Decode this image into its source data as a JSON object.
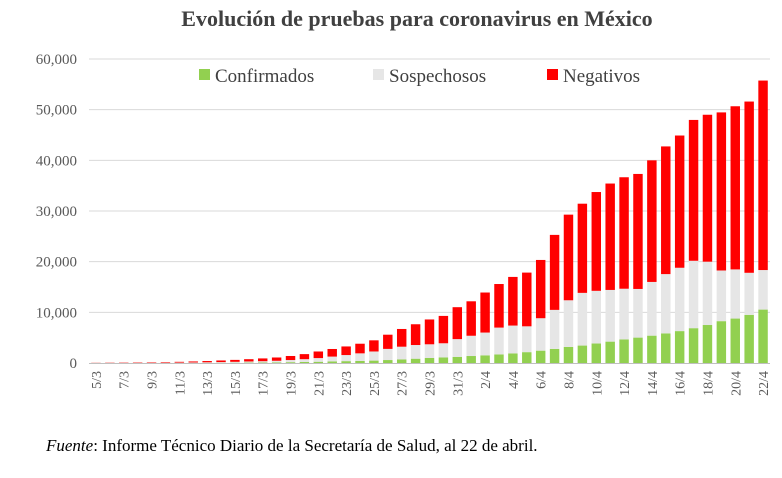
{
  "chart_data": {
    "type": "bar",
    "stacked": true,
    "title": "Evolución de pruebas para coronavirus en México",
    "xlabel": "",
    "ylabel": "",
    "ylim": [
      0,
      60000
    ],
    "yticks": [
      0,
      10000,
      20000,
      30000,
      40000,
      50000,
      60000
    ],
    "ytick_labels": [
      "0",
      "10,000",
      "20,000",
      "30,000",
      "40,000",
      "50,000",
      "60,000"
    ],
    "grid": true,
    "legend_position": "top",
    "categories": [
      "5/3",
      "6/3",
      "7/3",
      "8/3",
      "9/3",
      "10/3",
      "11/3",
      "12/3",
      "13/3",
      "14/3",
      "15/3",
      "16/3",
      "17/3",
      "18/3",
      "19/3",
      "20/3",
      "21/3",
      "22/3",
      "23/3",
      "24/3",
      "25/3",
      "26/3",
      "27/3",
      "28/3",
      "29/3",
      "30/3",
      "31/3",
      "1/4",
      "2/4",
      "3/4",
      "4/4",
      "5/4",
      "6/4",
      "7/4",
      "8/4",
      "9/4",
      "10/4",
      "11/4",
      "12/4",
      "13/4",
      "14/4",
      "15/4",
      "16/4",
      "17/4",
      "18/4",
      "19/4",
      "20/4",
      "21/4",
      "22/4"
    ],
    "tick_labels": [
      "5/3",
      "",
      "7/3",
      "",
      "9/3",
      "",
      "11/3",
      "",
      "13/3",
      "",
      "15/3",
      "",
      "17/3",
      "",
      "19/3",
      "",
      "21/3",
      "",
      "23/3",
      "",
      "25/3",
      "",
      "27/3",
      "",
      "29/3",
      "",
      "31/3",
      "",
      "2/4",
      "",
      "4/4",
      "",
      "6/4",
      "",
      "8/4",
      "",
      "10/4",
      "",
      "12/4",
      "",
      "14/4",
      "",
      "16/4",
      "",
      "18/4",
      "",
      "20/4",
      "",
      "22/4"
    ],
    "series": [
      {
        "name": "Confirmados",
        "color": "#92d050",
        "values": [
          5,
          5,
          7,
          7,
          7,
          7,
          12,
          15,
          26,
          41,
          53,
          82,
          93,
          118,
          164,
          203,
          251,
          316,
          367,
          405,
          475,
          585,
          717,
          848,
          993,
          1094,
          1215,
          1378,
          1510,
          1688,
          1890,
          2143,
          2439,
          2785,
          3181,
          3441,
          3844,
          4219,
          4661,
          5014,
          5399,
          5847,
          6297,
          6875,
          7497,
          8261,
          8772,
          9501,
          10544
        ]
      },
      {
        "name": "Sospechosos",
        "color": "#e6e6e6",
        "values": [
          20,
          25,
          30,
          35,
          40,
          50,
          70,
          90,
          110,
          140,
          180,
          220,
          260,
          320,
          420,
          550,
          720,
          950,
          1200,
          1500,
          1800,
          2200,
          2500,
          2700,
          2700,
          2800,
          3500,
          4000,
          4500,
          5300,
          5500,
          5100,
          6400,
          7700,
          9200,
          10400,
          10400,
          10200,
          10000,
          9600,
          10600,
          11700,
          12500,
          13300,
          12500,
          10000,
          9700,
          8300,
          7800
        ]
      },
      {
        "name": "Negativos",
        "color": "#ff0000",
        "values": [
          30,
          45,
          60,
          75,
          90,
          110,
          150,
          200,
          250,
          320,
          380,
          450,
          550,
          650,
          800,
          1000,
          1300,
          1500,
          1700,
          1900,
          2200,
          2800,
          3500,
          4100,
          4900,
          5400,
          6300,
          6800,
          7900,
          8600,
          9600,
          10600,
          11500,
          14800,
          16900,
          17600,
          19500,
          21000,
          22000,
          22700,
          24000,
          25200,
          26100,
          27800,
          29000,
          31200,
          32200,
          33800,
          37400
        ]
      }
    ]
  },
  "source": {
    "prefix": "Fuente",
    "text": ": Informe Técnico Diario de la Secretaría de Salud, al 22 de abril."
  }
}
